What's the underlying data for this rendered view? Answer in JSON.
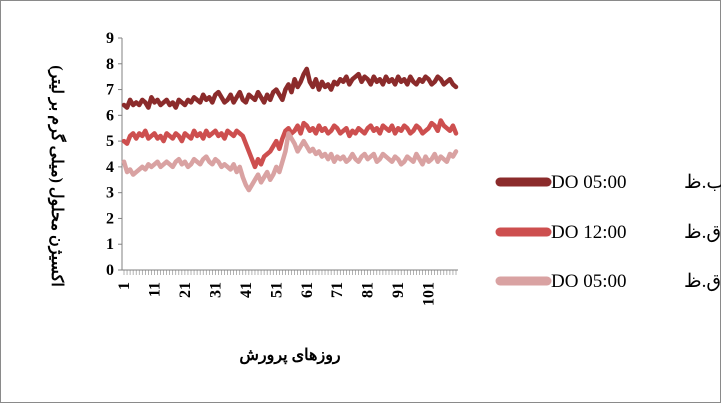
{
  "chart_data": {
    "type": "line",
    "xlabel": "روزهای پرورش",
    "ylabel": "اکسیژن محلول (میلی گرم بر لیتر)",
    "ylim": [
      0,
      9
    ],
    "yticks": [
      0,
      1,
      2,
      3,
      4,
      5,
      6,
      7,
      8,
      9
    ],
    "xlim": [
      1,
      110
    ],
    "xtick_labels": [
      "1",
      "11",
      "21",
      "31",
      "41",
      "51",
      "61",
      "71",
      "81",
      "91",
      "101"
    ],
    "grid": false,
    "legend_position": "right",
    "x": [
      1,
      2,
      3,
      4,
      5,
      6,
      7,
      8,
      9,
      10,
      11,
      12,
      13,
      14,
      15,
      16,
      17,
      18,
      19,
      20,
      21,
      22,
      23,
      24,
      25,
      26,
      27,
      28,
      29,
      30,
      31,
      32,
      33,
      34,
      35,
      36,
      37,
      38,
      39,
      40,
      41,
      42,
      43,
      44,
      45,
      46,
      47,
      48,
      49,
      50,
      51,
      52,
      53,
      54,
      55,
      56,
      57,
      58,
      59,
      60,
      61,
      62,
      63,
      64,
      65,
      66,
      67,
      68,
      69,
      70,
      71,
      72,
      73,
      74,
      75,
      76,
      77,
      78,
      79,
      80,
      81,
      82,
      83,
      84,
      85,
      86,
      87,
      88,
      89,
      90,
      91,
      92,
      93,
      94,
      95,
      96,
      97,
      98,
      99,
      100,
      101,
      102,
      103,
      104,
      105,
      106,
      107,
      108,
      109,
      110
    ],
    "series": [
      {
        "name": "DO 05:00 ب.ظ",
        "legend_parts": [
          "DO 05:00",
          "ب.ظ"
        ],
        "color": "#8b2b2b",
        "values": [
          6.4,
          6.3,
          6.6,
          6.4,
          6.5,
          6.4,
          6.6,
          6.5,
          6.3,
          6.7,
          6.5,
          6.6,
          6.4,
          6.5,
          6.6,
          6.4,
          6.5,
          6.3,
          6.6,
          6.5,
          6.4,
          6.6,
          6.5,
          6.7,
          6.6,
          6.5,
          6.8,
          6.6,
          6.7,
          6.5,
          6.8,
          6.9,
          6.7,
          6.5,
          6.6,
          6.8,
          6.5,
          6.7,
          6.9,
          6.6,
          6.5,
          6.8,
          6.7,
          6.6,
          6.9,
          6.7,
          6.5,
          6.8,
          6.6,
          6.9,
          7.0,
          6.8,
          6.6,
          7.0,
          7.2,
          6.9,
          7.4,
          7.1,
          7.3,
          7.6,
          7.8,
          7.3,
          7.1,
          7.4,
          7.0,
          7.3,
          7.1,
          7.2,
          7.0,
          7.3,
          7.2,
          7.4,
          7.3,
          7.5,
          7.2,
          7.4,
          7.5,
          7.6,
          7.3,
          7.5,
          7.4,
          7.2,
          7.5,
          7.3,
          7.4,
          7.2,
          7.5,
          7.3,
          7.4,
          7.2,
          7.5,
          7.3,
          7.4,
          7.2,
          7.5,
          7.3,
          7.2,
          7.4,
          7.3,
          7.5,
          7.4,
          7.2,
          7.3,
          7.5,
          7.4,
          7.2,
          7.3,
          7.4,
          7.2,
          7.1
        ]
      },
      {
        "name": "DO 12:00 ق.ظ",
        "legend_parts": [
          "DO 12:00",
          "ق.ظ"
        ],
        "color": "#cd4f4f",
        "values": [
          5.0,
          4.9,
          5.2,
          5.3,
          5.1,
          5.3,
          5.2,
          5.4,
          5.1,
          5.2,
          5.3,
          5.1,
          5.2,
          5.0,
          5.3,
          5.2,
          5.1,
          5.3,
          5.2,
          5.0,
          5.3,
          5.2,
          5.1,
          5.4,
          5.2,
          5.3,
          5.1,
          5.4,
          5.2,
          5.3,
          5.4,
          5.2,
          5.3,
          5.1,
          5.4,
          5.3,
          5.2,
          5.4,
          5.3,
          5.2,
          4.9,
          4.6,
          4.3,
          4.0,
          4.3,
          4.1,
          4.4,
          4.5,
          4.6,
          4.8,
          5.0,
          4.7,
          5.1,
          5.4,
          5.5,
          5.3,
          5.4,
          5.6,
          5.3,
          5.7,
          5.6,
          5.4,
          5.5,
          5.3,
          5.6,
          5.4,
          5.5,
          5.3,
          5.4,
          5.6,
          5.5,
          5.3,
          5.4,
          5.5,
          5.2,
          5.4,
          5.3,
          5.5,
          5.4,
          5.3,
          5.5,
          5.6,
          5.4,
          5.5,
          5.3,
          5.6,
          5.5,
          5.4,
          5.6,
          5.3,
          5.5,
          5.4,
          5.6,
          5.5,
          5.3,
          5.4,
          5.6,
          5.5,
          5.3,
          5.4,
          5.5,
          5.7,
          5.6,
          5.4,
          5.8,
          5.6,
          5.5,
          5.4,
          5.6,
          5.3
        ]
      },
      {
        "name": "DO 05:00 ق.ظ",
        "legend_parts": [
          "DO 05:00",
          "ق.ظ"
        ],
        "color": "#d9a2a2",
        "values": [
          4.2,
          3.8,
          3.9,
          3.7,
          3.8,
          3.9,
          4.0,
          3.9,
          4.1,
          4.0,
          4.1,
          4.2,
          4.0,
          4.1,
          4.2,
          4.1,
          4.0,
          4.2,
          4.3,
          4.1,
          4.2,
          4.0,
          4.1,
          4.3,
          4.2,
          4.1,
          4.3,
          4.4,
          4.2,
          4.1,
          4.3,
          4.2,
          4.0,
          4.1,
          4.0,
          3.9,
          4.1,
          3.8,
          4.0,
          3.6,
          3.3,
          3.1,
          3.3,
          3.5,
          3.7,
          3.4,
          3.6,
          3.8,
          3.5,
          3.7,
          4.0,
          3.8,
          4.2,
          4.6,
          5.3,
          5.1,
          4.9,
          4.6,
          4.8,
          5.0,
          4.8,
          4.6,
          4.7,
          4.5,
          4.6,
          4.4,
          4.5,
          4.3,
          4.5,
          4.2,
          4.4,
          4.3,
          4.4,
          4.2,
          4.3,
          4.5,
          4.3,
          4.2,
          4.4,
          4.5,
          4.3,
          4.4,
          4.5,
          4.2,
          4.3,
          4.5,
          4.4,
          4.3,
          4.2,
          4.4,
          4.3,
          4.1,
          4.2,
          4.4,
          4.3,
          4.2,
          4.5,
          4.3,
          4.1,
          4.4,
          4.2,
          4.3,
          4.5,
          4.2,
          4.4,
          4.3,
          4.2,
          4.5,
          4.4,
          4.6
        ]
      }
    ]
  }
}
